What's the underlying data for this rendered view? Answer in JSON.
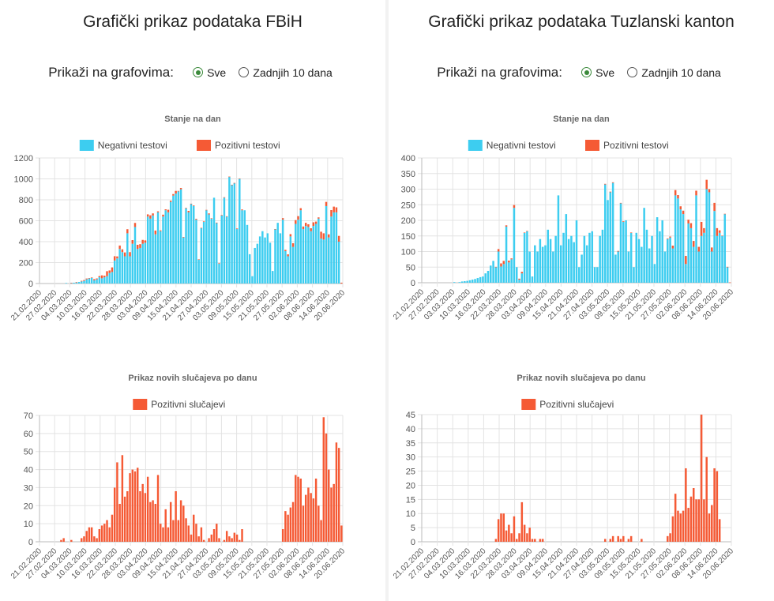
{
  "left": {
    "title": "Grafički prikaz podataka FBiH",
    "show_label": "Prikaži na grafovima:",
    "options": [
      {
        "label": "Sve",
        "selected": true
      },
      {
        "label": "Zadnjih 10 dana",
        "selected": false
      }
    ]
  },
  "right": {
    "title": "Grafički prikaz podataka Tuzlanski kanton",
    "show_label": "Prikaži na grafovima:",
    "options": [
      {
        "label": "Sve",
        "selected": true
      },
      {
        "label": "Zadnjih 10 dana",
        "selected": false
      }
    ]
  },
  "colors": {
    "negative": "#3dcdf0",
    "positive": "#f55a35",
    "grid": "#e3e3e3"
  },
  "chart_data": [
    {
      "id": "fbih-stanje",
      "type": "bar",
      "stacked": true,
      "title": "Stanje na dan",
      "x_tick_labels": [
        "21.02.2020",
        "27.02.2020",
        "04.03.2020",
        "10.03.2020",
        "16.03.2020",
        "22.03.2020",
        "28.03.2020",
        "03.04.2020",
        "09.04.2020",
        "15.04.2020",
        "21.04.2020",
        "27.04.2020",
        "03.05.2020",
        "09.05.2020",
        "15.05.2020",
        "21.05.2020",
        "27.05.2020",
        "02.06.2020",
        "08.06.2020",
        "14.06.2020",
        "20.06.2020"
      ],
      "ylim": [
        0,
        1200
      ],
      "yticks": [
        0,
        200,
        400,
        600,
        800,
        1000,
        1200
      ],
      "series": [
        {
          "name": "Negativni testovi",
          "color": "#3dcdf0",
          "values": [
            0,
            0,
            0,
            0,
            0,
            0,
            0,
            0,
            0,
            0,
            5,
            0,
            5,
            8,
            10,
            15,
            20,
            25,
            40,
            50,
            55,
            30,
            40,
            60,
            50,
            60,
            70,
            100,
            110,
            220,
            240,
            330,
            300,
            260,
            480,
            260,
            380,
            540,
            330,
            340,
            380,
            390,
            640,
            620,
            650,
            470,
            680,
            500,
            640,
            700,
            680,
            780,
            840,
            860,
            880,
            900,
            440,
            720,
            680,
            760,
            740,
            610,
            230,
            530,
            590,
            700,
            660,
            620,
            820,
            580,
            190,
            650,
            820,
            640,
            1020,
            940,
            960,
            520,
            1000,
            700,
            700,
            560,
            280,
            70,
            340,
            380,
            450,
            500,
            440,
            480,
            390,
            120,
            520,
            580,
            480,
            610,
            310,
            260,
            450,
            350,
            570,
            610,
            700,
            520,
            550,
            540,
            500,
            550,
            570,
            620,
            430,
            420,
            740,
            440,
            640,
            680,
            680,
            400,
            0
          ]
        },
        {
          "name": "Pozitivni testovi",
          "color": "#f55a35",
          "values": [
            0,
            0,
            0,
            0,
            0,
            0,
            0,
            0,
            0,
            0,
            0,
            0,
            2,
            0,
            4,
            0,
            6,
            8,
            8,
            2,
            3,
            12,
            9,
            11,
            28,
            15,
            48,
            25,
            44,
            41,
            19,
            33,
            27,
            37,
            39,
            40,
            35,
            39,
            40,
            36,
            37,
            22,
            21,
            32,
            20,
            36,
            10,
            8,
            18,
            9,
            25,
            12,
            15,
            25,
            5,
            13,
            5,
            3,
            14,
            3,
            6,
            8,
            1,
            2,
            5,
            4,
            10,
            4,
            0,
            2,
            5,
            4,
            5,
            3,
            2,
            4,
            1,
            6,
            4,
            8,
            0,
            0,
            0,
            0,
            0,
            0,
            0,
            0,
            0,
            0,
            0,
            0,
            1,
            0,
            0,
            15,
            12,
            19,
            22,
            35,
            36,
            34,
            20,
            25,
            30,
            26,
            28,
            35,
            22,
            12,
            65,
            60,
            40,
            30,
            62,
            55,
            48,
            55,
            8
          ]
        }
      ],
      "xlabel": "",
      "ylabel": ""
    },
    {
      "id": "fbih-novi",
      "type": "bar",
      "title": "Prikaz novih slučajeva po danu",
      "x_tick_labels": [
        "21.02.2020",
        "27.02.2020",
        "04.03.2020",
        "10.03.2020",
        "16.03.2020",
        "22.03.2020",
        "28.03.2020",
        "03.04.2020",
        "09.04.2020",
        "15.04.2020",
        "21.04.2020",
        "27.04.2020",
        "03.05.2020",
        "09.05.2020",
        "15.05.2020",
        "21.05.2020",
        "27.05.2020",
        "02.06.2020",
        "08.06.2020",
        "14.06.2020",
        "20.06.2020"
      ],
      "ylim": [
        0,
        70
      ],
      "yticks": [
        0,
        10,
        20,
        30,
        40,
        50,
        60,
        70
      ],
      "series": [
        {
          "name": "Pozitivni slučajevi",
          "color": "#f55a35",
          "values": [
            0,
            0,
            0,
            0,
            0,
            0,
            0,
            0,
            1,
            2,
            0,
            0,
            1,
            0,
            0,
            0,
            2,
            3,
            6,
            8,
            8,
            3,
            2,
            7,
            9,
            10,
            12,
            8,
            15,
            30,
            44,
            21,
            48,
            25,
            28,
            38,
            40,
            39,
            41,
            28,
            32,
            27,
            36,
            22,
            23,
            21,
            37,
            10,
            8,
            18,
            8,
            22,
            12,
            28,
            12,
            23,
            20,
            13,
            9,
            4,
            15,
            10,
            3,
            8,
            1,
            0,
            2,
            4,
            7,
            10,
            2,
            0,
            1,
            6,
            3,
            2,
            5,
            4,
            1,
            7,
            0,
            0,
            0,
            0,
            0,
            0,
            0,
            0,
            0,
            0,
            0,
            0,
            0,
            0,
            0,
            7,
            17,
            15,
            19,
            22,
            37,
            36,
            35,
            20,
            26,
            30,
            27,
            24,
            35,
            20,
            12,
            69,
            60,
            40,
            30,
            32,
            55,
            52,
            9
          ]
        }
      ],
      "xlabel": "",
      "ylabel": ""
    },
    {
      "id": "tk-stanje",
      "type": "bar",
      "stacked": true,
      "title": "Stanje na dan",
      "x_tick_labels": [
        "21.02.2020",
        "27.02.2020",
        "03.03.2020",
        "10.03.2020",
        "16.03.2020",
        "22.03.2020",
        "28.03.2020",
        "03.04.2020",
        "09.04.2020",
        "15.04.2020",
        "21.04.2020",
        "27.04.2020",
        "03.05.2020",
        "09.05.2020",
        "15.05.2020",
        "21.05.2020",
        "27.05.2020",
        "02.06.2020",
        "08.06.2020",
        "14.06.2020",
        "20.06.2020"
      ],
      "ylim": [
        0,
        400
      ],
      "yticks": [
        0,
        50,
        100,
        150,
        200,
        250,
        300,
        350,
        400
      ],
      "series": [
        {
          "name": "Negativni testovi",
          "color": "#3dcdf0",
          "values": [
            0,
            0,
            0,
            0,
            0,
            0,
            0,
            0,
            0,
            0,
            0,
            0,
            2,
            0,
            2,
            4,
            5,
            6,
            8,
            10,
            12,
            15,
            18,
            20,
            30,
            38,
            55,
            70,
            50,
            100,
            52,
            60,
            180,
            65,
            75,
            240,
            50,
            10,
            30,
            160,
            165,
            100,
            20,
            120,
            100,
            140,
            115,
            120,
            170,
            140,
            100,
            150,
            280,
            120,
            160,
            220,
            140,
            150,
            130,
            200,
            50,
            90,
            150,
            120,
            160,
            165,
            50,
            50,
            150,
            170,
            315,
            265,
            290,
            320,
            90,
            100,
            255,
            195,
            200,
            100,
            160,
            50,
            160,
            140,
            115,
            240,
            170,
            110,
            150,
            60,
            210,
            165,
            200,
            100,
            140,
            145,
            110,
            280,
            270,
            235,
            220,
            60,
            190,
            175,
            115,
            280,
            100,
            150,
            160,
            300,
            290,
            100,
            230,
            150,
            160,
            150,
            220,
            50,
            0
          ]
        },
        {
          "name": "Pozitivni testovi",
          "color": "#f55a35",
          "values": [
            0,
            0,
            0,
            0,
            0,
            0,
            0,
            0,
            0,
            0,
            0,
            0,
            0,
            0,
            0,
            0,
            0,
            0,
            0,
            0,
            0,
            0,
            0,
            0,
            0,
            0,
            0,
            0,
            1,
            8,
            10,
            10,
            4,
            6,
            3,
            9,
            0,
            3,
            5,
            1,
            1,
            0,
            0,
            0,
            0,
            0,
            0,
            0,
            0,
            0,
            0,
            0,
            0,
            0,
            0,
            0,
            0,
            0,
            0,
            0,
            0,
            0,
            0,
            0,
            0,
            0,
            0,
            0,
            0,
            0,
            2,
            0,
            2,
            2,
            0,
            2,
            1,
            2,
            0,
            0,
            1,
            0,
            0,
            0,
            0,
            0,
            0,
            0,
            0,
            0,
            0,
            0,
            0,
            0,
            2,
            3,
            9,
            17,
            11,
            10,
            11,
            26,
            12,
            16,
            19,
            15,
            15,
            45,
            15,
            30,
            10,
            13,
            26,
            25,
            8,
            1,
            1,
            1,
            1
          ]
        }
      ],
      "xlabel": "",
      "ylabel": ""
    },
    {
      "id": "tk-novi",
      "type": "bar",
      "title": "Prikaz novih slučajeva po danu",
      "x_tick_labels": [
        "21.02.2020",
        "27.02.2020",
        "04.03.2020",
        "10.03.2020",
        "16.03.2020",
        "22.03.2020",
        "28.03.2020",
        "03.04.2020",
        "09.04.2020",
        "15.04.2020",
        "21.04.2020",
        "27.04.2020",
        "03.05.2020",
        "09.05.2020",
        "15.05.2020",
        "21.05.2020",
        "27.05.2020",
        "02.06.2020",
        "08.06.2020",
        "14.06.2020",
        "20.06.2020"
      ],
      "ylim": [
        0,
        45
      ],
      "yticks": [
        0,
        5,
        10,
        15,
        20,
        25,
        30,
        35,
        40,
        45
      ],
      "series": [
        {
          "name": "Pozitivni slučajevi",
          "color": "#f55a35",
          "values": [
            0,
            0,
            0,
            0,
            0,
            0,
            0,
            0,
            0,
            0,
            0,
            0,
            0,
            0,
            0,
            0,
            0,
            0,
            0,
            0,
            0,
            0,
            0,
            0,
            0,
            0,
            0,
            0,
            1,
            8,
            10,
            10,
            4,
            6,
            3,
            9,
            1,
            3,
            14,
            6,
            3,
            5,
            1,
            1,
            0,
            1,
            1,
            0,
            0,
            0,
            0,
            0,
            0,
            0,
            0,
            0,
            0,
            0,
            0,
            0,
            0,
            0,
            0,
            0,
            0,
            0,
            0,
            0,
            0,
            0,
            1,
            0,
            1,
            2,
            0,
            2,
            1,
            2,
            0,
            1,
            2,
            0,
            0,
            0,
            1,
            0,
            0,
            0,
            0,
            0,
            0,
            0,
            0,
            0,
            2,
            3,
            9,
            17,
            11,
            10,
            11,
            26,
            12,
            16,
            19,
            15,
            15,
            45,
            15,
            30,
            10,
            13,
            26,
            25,
            8,
            0,
            0,
            0,
            0
          ]
        }
      ],
      "xlabel": "",
      "ylabel": ""
    }
  ]
}
